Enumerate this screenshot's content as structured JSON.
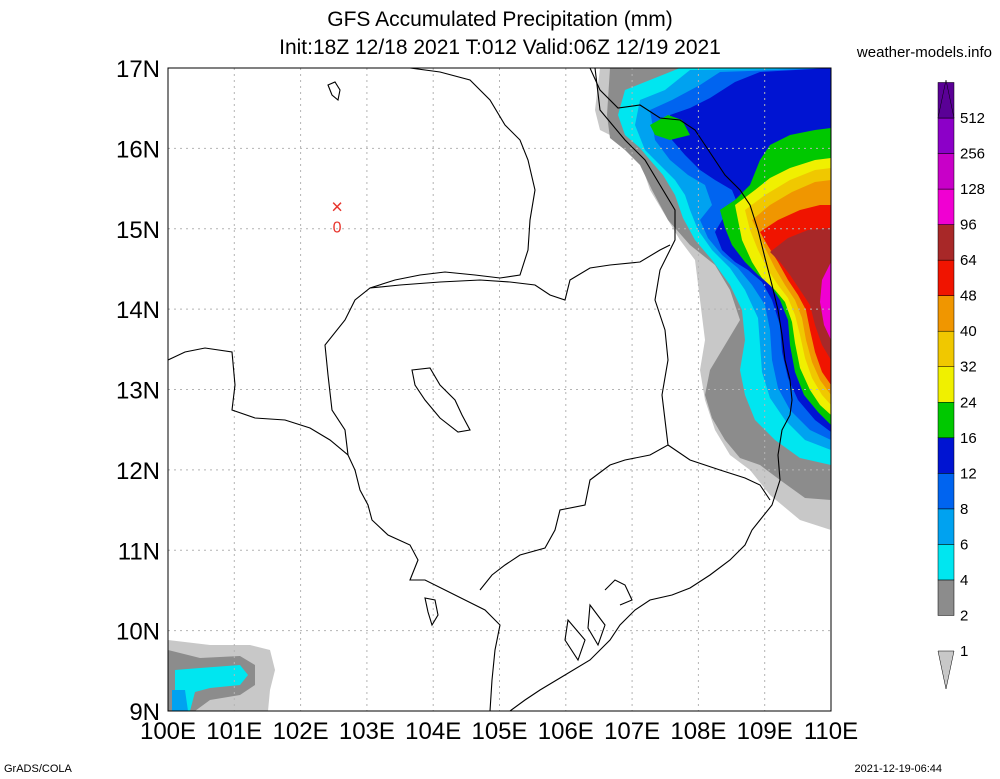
{
  "title_line1": "GFS Accumulated Precipitation (mm)",
  "title_line2": "Init:18Z 12/18 2021 T:012 Valid:06Z 12/19 2021",
  "site": "weather-models.info",
  "footer_left": "GrADS/COLA",
  "footer_right": "2021-12-19-06:44",
  "map": {
    "lon_range": [
      100,
      110
    ],
    "lat_range": [
      9,
      17
    ],
    "lat_labels": [
      "9N",
      "10N",
      "11N",
      "12N",
      "13N",
      "14N",
      "15N",
      "16N",
      "17N"
    ],
    "lon_labels": [
      "100E",
      "101E",
      "102E",
      "103E",
      "104E",
      "105E",
      "106E",
      "107E",
      "108E",
      "109E",
      "110E"
    ],
    "grid": "dotted",
    "marker": {
      "symbol": "×",
      "label": "0",
      "lon": 102.55,
      "lat": 15.25,
      "color": "#e8342c"
    }
  },
  "legend": {
    "levels": [
      "1",
      "2",
      "4",
      "6",
      "8",
      "12",
      "16",
      "24",
      "32",
      "40",
      "48",
      "64",
      "96",
      "128",
      "256",
      "512"
    ],
    "colors": [
      "#c8c8c8",
      "#8c8c8c",
      "#00e6f0",
      "#00a2f0",
      "#0064f0",
      "#0014d2",
      "#00c800",
      "#f0f000",
      "#f0c800",
      "#f09600",
      "#f01400",
      "#a82828",
      "#f000d2",
      "#c800c8",
      "#8c00c8",
      "#5a0096"
    ]
  }
}
